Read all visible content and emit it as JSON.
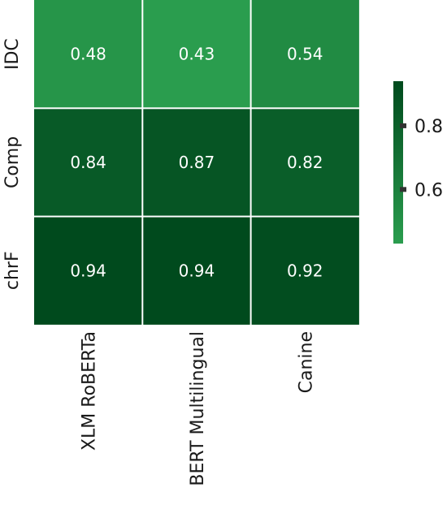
{
  "chart_data": {
    "type": "heatmap",
    "title": "",
    "xlabel": "",
    "ylabel": "",
    "rows": [
      "IDC",
      "Comp",
      "chrF"
    ],
    "columns": [
      "XLM RoBERTa",
      "BERT Multilingual",
      "Canine"
    ],
    "values": [
      [
        0.48,
        0.43,
        0.54
      ],
      [
        0.84,
        0.87,
        0.82
      ],
      [
        0.94,
        0.94,
        0.92
      ]
    ],
    "colormap": {
      "low_color": "#2a9d4e",
      "high_color": "#004a1d"
    },
    "colorbar": {
      "range": [
        0.43,
        0.94
      ],
      "ticks": [
        0.6,
        0.8
      ],
      "tick_labels": [
        "0.6",
        "0.8"
      ],
      "placement": "right"
    },
    "grid_color": "#ffffff"
  }
}
